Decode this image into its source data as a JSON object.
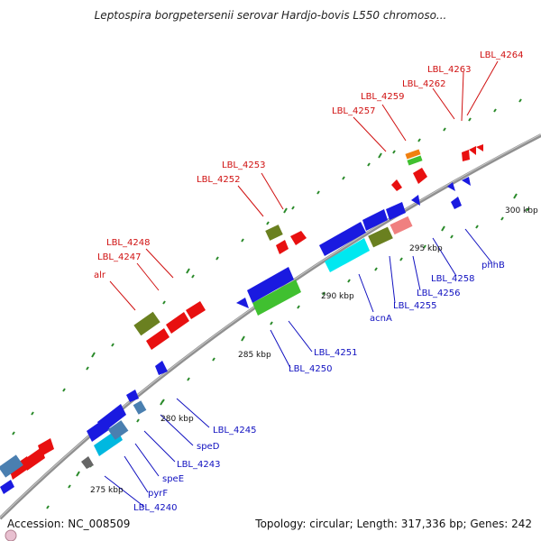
{
  "title": "Leptospira borgpetersenii serovar Hardjo-bovis L550 chromoso...",
  "footer": {
    "accession": "Accession: NC_008509",
    "summary": "Topology: circular; Length: 317,336 bp; Genes: 242"
  },
  "colors": {
    "backbone": "#8a8a8a",
    "red_label": "#d01010",
    "blue_label": "#1010c0",
    "tick": "#2a8a2a"
  },
  "scale_labels": [
    "275 kbp",
    "280 kbp",
    "285 kbp",
    "290 kbp",
    "295 kbp",
    "300 kbp"
  ],
  "red_labels": [
    "LBL_4264",
    "LBL_4263",
    "LBL_4262",
    "LBL_4259",
    "LBL_4257",
    "LBL_4253",
    "LBL_4252",
    "LBL_4248",
    "LBL_4247",
    "alr"
  ],
  "blue_labels": [
    "phhB",
    "LBL_4258",
    "LBL_4256",
    "LBL_4255",
    "acnA",
    "LBL_4251",
    "LBL_4250",
    "LBL_4245",
    "speD",
    "LBL_4243",
    "speE",
    "pyrF",
    "LBL_4240"
  ]
}
